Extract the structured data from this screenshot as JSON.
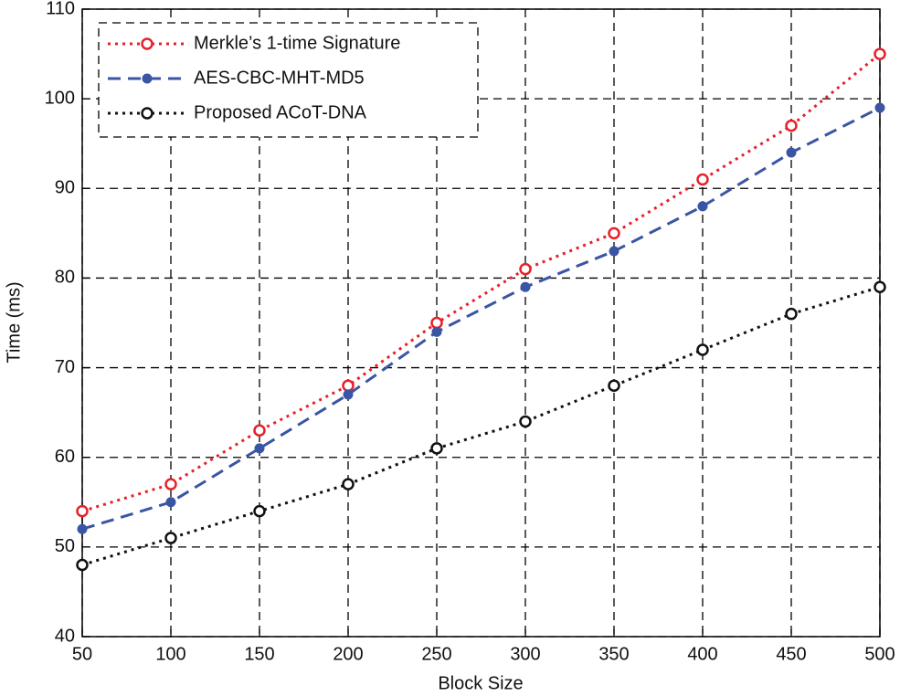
{
  "chart_data": {
    "type": "line",
    "xlabel": "Block Size",
    "ylabel": "Time (ms)",
    "x": [
      50,
      100,
      150,
      200,
      250,
      300,
      350,
      400,
      450,
      500
    ],
    "series": [
      {
        "name": "Merkle’s 1-time Signature",
        "color": "#e8202a",
        "linestyle": "dotted",
        "marker": "open",
        "values": [
          54,
          57,
          63,
          68,
          75,
          81,
          85,
          91,
          97,
          105
        ]
      },
      {
        "name": "AES-CBC-MHT-MD5",
        "color": "#3a55a4",
        "linestyle": "dashed",
        "marker": "filled",
        "values": [
          52,
          55,
          61,
          67,
          74,
          79,
          83,
          88,
          94,
          99
        ]
      },
      {
        "name": "Proposed ACoT-DNA",
        "color": "#111111",
        "linestyle": "dotted",
        "marker": "open",
        "values": [
          48,
          51,
          54,
          57,
          61,
          64,
          68,
          72,
          76,
          79
        ]
      }
    ],
    "xlim": [
      50,
      500
    ],
    "xticks": [
      50,
      100,
      150,
      200,
      250,
      300,
      350,
      400,
      450,
      500
    ],
    "ylim": [
      40,
      110
    ],
    "yticks": [
      40,
      50,
      60,
      70,
      80,
      90,
      100,
      110
    ],
    "grid": true,
    "legend": "upper left"
  }
}
